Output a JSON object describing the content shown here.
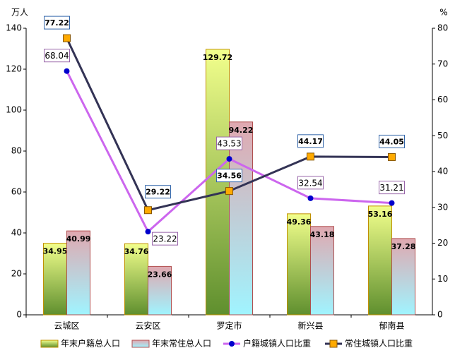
{
  "chart_data": {
    "type": "bar-line",
    "y_label": "万人",
    "y2_label": "%",
    "categories": [
      "云城区",
      "云安区",
      "罗定市",
      "新兴县",
      "郁南县"
    ],
    "ylim": [
      0,
      140
    ],
    "yticks": [
      0,
      20,
      40,
      60,
      80,
      100,
      120,
      140
    ],
    "y2lim": [
      0,
      80
    ],
    "y2ticks": [
      0,
      10,
      20,
      30,
      40,
      50,
      60,
      70,
      80
    ],
    "series": [
      {
        "name": "年末户籍总人口",
        "type": "bar",
        "color": "#5f8f2e",
        "values": [
          34.95,
          34.76,
          129.72,
          49.36,
          53.16
        ]
      },
      {
        "name": "年末常住总人口",
        "type": "bar",
        "color": "#e0a8b0",
        "values": [
          40.99,
          23.66,
          94.22,
          43.18,
          37.28
        ]
      },
      {
        "name": "户籍城镇人口比重",
        "type": "line",
        "axis": "y2",
        "color": "#cc66ee",
        "marker_color": "#0000cc",
        "values": [
          68.04,
          23.22,
          43.53,
          32.54,
          31.21
        ]
      },
      {
        "name": "常住城镇人口比重",
        "type": "line",
        "axis": "y2",
        "color": "#333355",
        "marker_color": "#ffaa00",
        "values": [
          77.22,
          29.22,
          34.56,
          44.17,
          44.05
        ]
      }
    ]
  }
}
